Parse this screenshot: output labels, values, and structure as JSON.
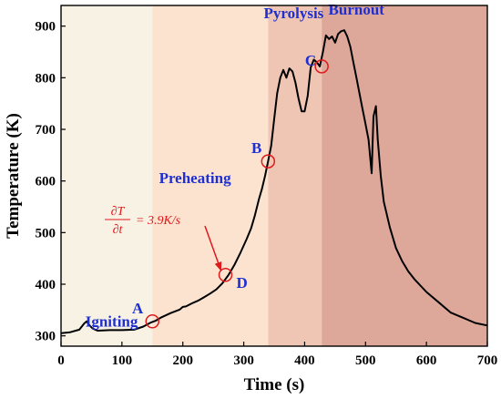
{
  "chart_data": {
    "type": "line",
    "xlabel": "Time (s)",
    "ylabel": "Temperature (K)",
    "xlim": [
      0,
      700
    ],
    "ylim": [
      280,
      940
    ],
    "xticks": [
      "0",
      "100",
      "200",
      "300",
      "400",
      "500",
      "600",
      "700"
    ],
    "yticks": [
      "300",
      "400",
      "500",
      "600",
      "700",
      "800",
      "900"
    ],
    "grid": false,
    "phases": [
      {
        "label": "Igniting",
        "x_start": 0,
        "x_end": 150,
        "color": "#f7f2e4"
      },
      {
        "label": "Preheating",
        "x_start": 150,
        "x_end": 340,
        "color": "#fbe3d0"
      },
      {
        "label": "Pyrolysis",
        "x_start": 340,
        "x_end": 428,
        "color": "#efc6b3"
      },
      {
        "label": "Burnout",
        "x_start": 428,
        "x_end": 700,
        "color": "#dda89a"
      }
    ],
    "marked_points": [
      {
        "label": "A",
        "x": 150,
        "y": 328
      },
      {
        "label": "D",
        "x": 270,
        "y": 418
      },
      {
        "label": "B",
        "x": 340,
        "y": 638
      },
      {
        "label": "C",
        "x": 428,
        "y": 822
      }
    ],
    "annotation": {
      "numerator": "∂T",
      "denominator": "∂t",
      "value": "= 3.9K/s",
      "points_to": "D"
    },
    "series": [
      {
        "color": "#000000",
        "x": [
          0,
          15,
          30,
          38,
          42,
          47,
          52,
          60,
          80,
          100,
          120,
          135,
          148,
          155,
          165,
          180,
          195,
          200,
          205,
          215,
          225,
          235,
          245,
          255,
          265,
          275,
          285,
          295,
          305,
          312,
          318,
          325,
          330,
          335,
          340,
          345,
          350,
          355,
          360,
          365,
          370,
          375,
          380,
          385,
          390,
          395,
          400,
          405,
          410,
          415,
          420,
          425,
          430,
          435,
          440,
          445,
          450,
          455,
          460,
          465,
          470,
          475,
          480,
          485,
          490,
          495,
          500,
          505,
          510,
          513,
          517,
          520,
          525,
          530,
          540,
          550,
          560,
          570,
          580,
          600,
          620,
          640,
          660,
          680,
          700
        ],
        "y": [
          305,
          307,
          312,
          324,
          328,
          320,
          314,
          310,
          311,
          311,
          312,
          318,
          326,
          329,
          336,
          344,
          351,
          356,
          357,
          363,
          368,
          375,
          382,
          390,
          402,
          418,
          438,
          462,
          488,
          508,
          532,
          565,
          585,
          610,
          638,
          668,
          720,
          770,
          800,
          815,
          800,
          818,
          812,
          790,
          760,
          735,
          735,
          765,
          820,
          835,
          830,
          822,
          850,
          882,
          875,
          880,
          868,
          885,
          890,
          892,
          880,
          860,
          830,
          800,
          770,
          740,
          710,
          680,
          615,
          725,
          745,
          680,
          610,
          560,
          510,
          470,
          445,
          425,
          410,
          385,
          365,
          345,
          335,
          325,
          320
        ]
      }
    ]
  }
}
